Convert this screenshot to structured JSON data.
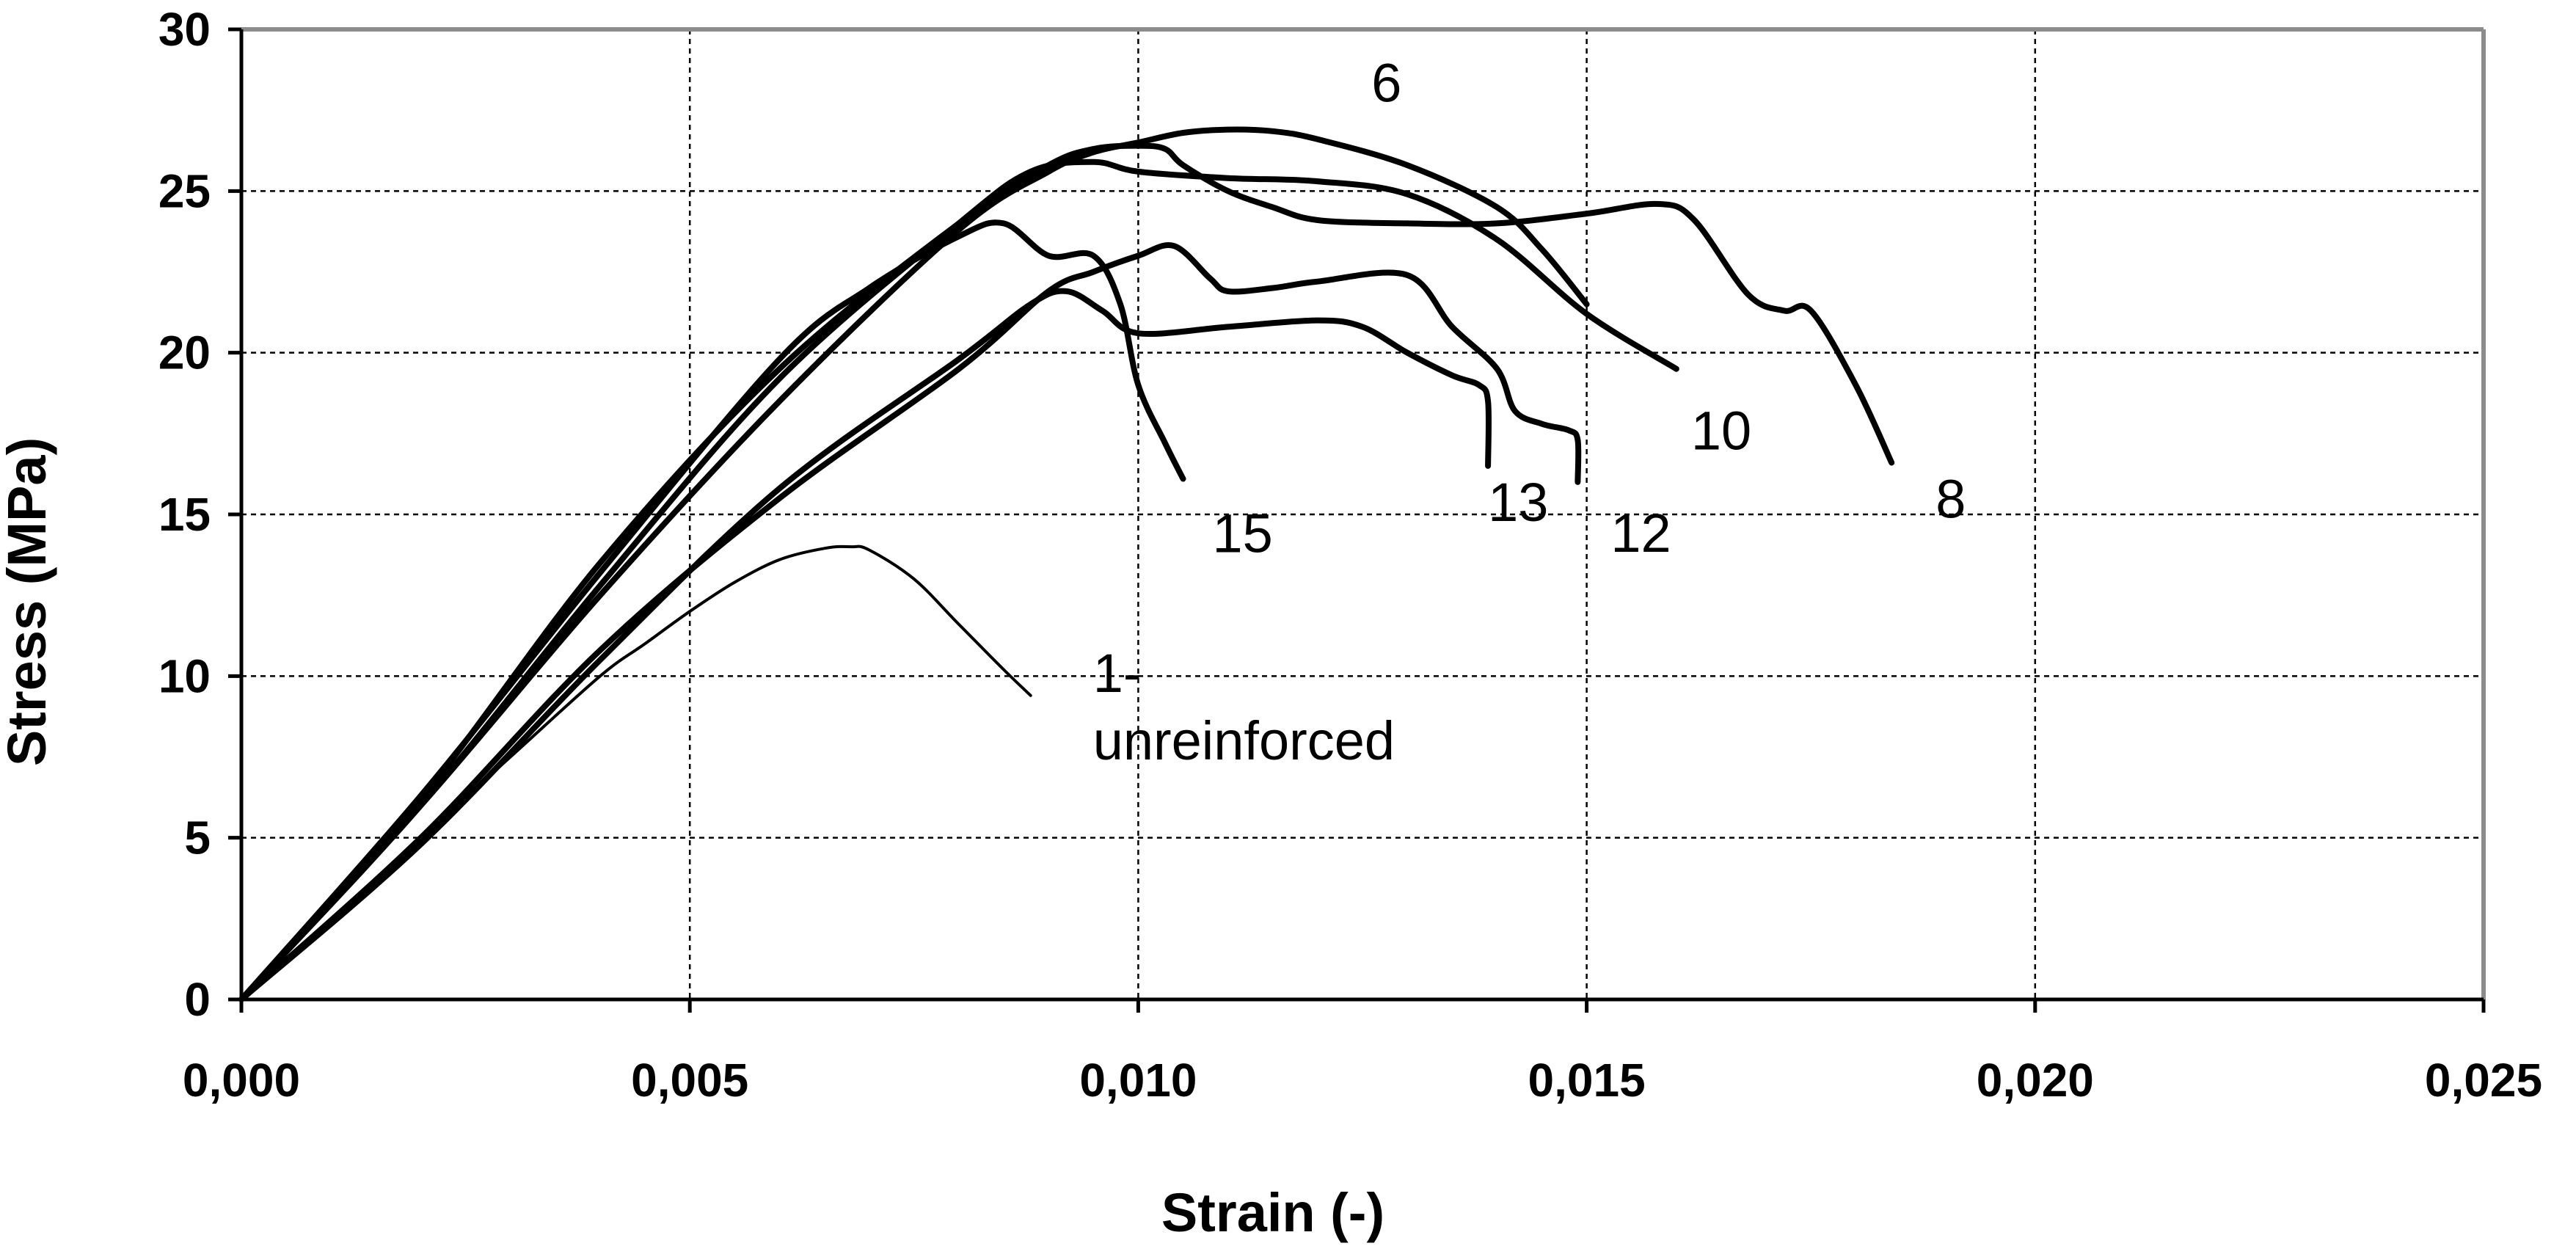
{
  "chart_data": {
    "type": "line",
    "title": "",
    "xlabel": "Strain (-)",
    "ylabel": "Stress (MPa)",
    "xlim": [
      0,
      0.025
    ],
    "ylim": [
      0,
      30
    ],
    "xticks": [
      0,
      0.005,
      0.01,
      0.015,
      0.02,
      0.025
    ],
    "xtick_labels": [
      "0,000",
      "0,005",
      "0,010",
      "0,015",
      "0,020",
      "0,025"
    ],
    "yticks": [
      0,
      5,
      10,
      15,
      20,
      25,
      30
    ],
    "ytick_labels": [
      "0",
      "5",
      "10",
      "15",
      "20",
      "25",
      "30"
    ],
    "grid": true,
    "series": [
      {
        "name": "1-unreinforced",
        "label_lines": [
          "1-",
          "unreinforced"
        ],
        "thin": true,
        "x": [
          0,
          0.001,
          0.002,
          0.003,
          0.004,
          0.0045,
          0.005,
          0.0055,
          0.006,
          0.0065,
          0.0068,
          0.007,
          0.0075,
          0.008,
          0.0085,
          0.0088
        ],
        "y": [
          0,
          2.5,
          5.0,
          7.5,
          10.0,
          11.0,
          12.0,
          12.9,
          13.6,
          13.95,
          14.0,
          13.9,
          13.0,
          11.6,
          10.2,
          9.4
        ]
      },
      {
        "name": "6",
        "label_lines": [
          "6"
        ],
        "x": [
          0,
          0.002,
          0.004,
          0.006,
          0.008,
          0.009,
          0.0095,
          0.01,
          0.0105,
          0.011,
          0.0115,
          0.012,
          0.013,
          0.014,
          0.0145,
          0.015
        ],
        "y": [
          0,
          6.0,
          12.5,
          18.5,
          23.8,
          25.6,
          26.2,
          26.5,
          26.8,
          26.9,
          26.85,
          26.6,
          25.8,
          24.5,
          23.2,
          21.5
        ]
      },
      {
        "name": "8",
        "label_lines": [
          "8"
        ],
        "x": [
          0,
          0.002,
          0.004,
          0.006,
          0.008,
          0.009,
          0.0095,
          0.01,
          0.0103,
          0.0105,
          0.011,
          0.0115,
          0.012,
          0.013,
          0.014,
          0.015,
          0.0158,
          0.0162,
          0.0168,
          0.0172,
          0.0175,
          0.018,
          0.0184
        ],
        "y": [
          0,
          6.2,
          13.5,
          19.5,
          24.0,
          25.8,
          26.3,
          26.4,
          26.3,
          25.8,
          25.0,
          24.5,
          24.1,
          24.0,
          24.0,
          24.3,
          24.6,
          24.1,
          21.8,
          21.3,
          21.3,
          19.0,
          16.6
        ]
      },
      {
        "name": "10",
        "label_lines": [
          "10"
        ],
        "x": [
          0,
          0.002,
          0.004,
          0.006,
          0.008,
          0.0088,
          0.0095,
          0.01,
          0.011,
          0.012,
          0.013,
          0.014,
          0.015,
          0.016
        ],
        "y": [
          0,
          6.0,
          12.8,
          19.2,
          24.0,
          25.6,
          25.9,
          25.6,
          25.4,
          25.3,
          24.9,
          23.5,
          21.2,
          19.5
        ]
      },
      {
        "name": "12",
        "label_lines": [
          "12"
        ],
        "x": [
          0,
          0.002,
          0.004,
          0.006,
          0.008,
          0.009,
          0.0095,
          0.01,
          0.0104,
          0.0108,
          0.011,
          0.0115,
          0.012,
          0.013,
          0.0135,
          0.014,
          0.0142,
          0.0145,
          0.0148,
          0.0149,
          0.0149
        ],
        "y": [
          0,
          5.0,
          10.8,
          15.5,
          19.5,
          21.9,
          22.5,
          23.0,
          23.3,
          22.3,
          21.9,
          22.0,
          22.2,
          22.4,
          20.8,
          19.5,
          18.2,
          17.8,
          17.6,
          17.3,
          16.0
        ]
      },
      {
        "name": "13",
        "label_lines": [
          "13"
        ],
        "x": [
          0,
          0.002,
          0.004,
          0.006,
          0.008,
          0.0088,
          0.0092,
          0.0096,
          0.01,
          0.011,
          0.012,
          0.0125,
          0.013,
          0.0135,
          0.0138,
          0.0139,
          0.0139
        ],
        "y": [
          0,
          4.8,
          10.5,
          15.8,
          19.8,
          21.5,
          21.9,
          21.3,
          20.6,
          20.8,
          21.0,
          20.8,
          20.0,
          19.3,
          19.0,
          18.5,
          16.5
        ]
      },
      {
        "name": "15",
        "label_lines": [
          "15"
        ],
        "x": [
          0,
          0.002,
          0.004,
          0.006,
          0.007,
          0.008,
          0.0085,
          0.009,
          0.0095,
          0.0098,
          0.01,
          0.0103,
          0.0105
        ],
        "y": [
          0,
          6.3,
          13.2,
          19.8,
          22.0,
          23.6,
          24.0,
          23.0,
          23.0,
          21.5,
          19.0,
          17.2,
          16.1
        ]
      }
    ]
  }
}
